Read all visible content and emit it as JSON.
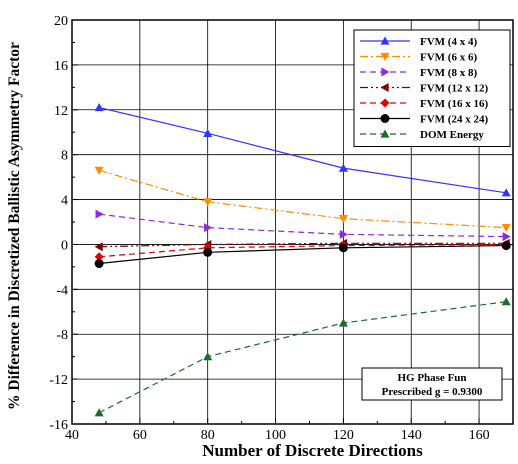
{
  "chart_data": {
    "type": "line",
    "xlabel": "Number of Discrete Directions",
    "ylabel": "% Difference in Discretized Ballistic Asymmetry Factor",
    "xlim": [
      40,
      170
    ],
    "ylim": [
      -16,
      20
    ],
    "xticks": [
      "40",
      "60",
      "80",
      "100",
      "120",
      "140",
      "160"
    ],
    "yticks": [
      "-16",
      "-12",
      "-8",
      "-4",
      "0",
      "4",
      "8",
      "12",
      "16",
      "20"
    ],
    "grid": true,
    "legend_position": "top-right",
    "annotation": [
      "HG Phase Fun",
      "Prescribed g = 0.9300"
    ],
    "series": [
      {
        "name": "FVM (4 x 4)",
        "color": "#3333ff",
        "marker": "triangle-up",
        "dash": "solid",
        "x": [
          48,
          80,
          120,
          168
        ],
        "y": [
          12.2,
          9.9,
          6.8,
          4.6
        ]
      },
      {
        "name": "FVM (6 x 6)",
        "color": "#ff8c00",
        "marker": "triangle-down",
        "dash": "dashdot",
        "x": [
          48,
          80,
          120,
          168
        ],
        "y": [
          6.6,
          3.8,
          2.3,
          1.5
        ]
      },
      {
        "name": "FVM (8 x 8)",
        "color": "#8a2be2",
        "marker": "triangle-right",
        "dash": "dash",
        "x": [
          48,
          80,
          120,
          168
        ],
        "y": [
          2.7,
          1.5,
          0.9,
          0.7
        ]
      },
      {
        "name": "FVM (12 x 12)",
        "color": "#800000",
        "marker": "triangle-left",
        "dash": "dashdotdot",
        "x": [
          48,
          80,
          120,
          168
        ],
        "y": [
          -0.2,
          0.0,
          0.1,
          0.1
        ]
      },
      {
        "name": "FVM (16 x 16)",
        "color": "#e00000",
        "marker": "diamond",
        "dash": "dash",
        "x": [
          48,
          80,
          120,
          168
        ],
        "y": [
          -1.1,
          -0.3,
          -0.1,
          0.0
        ]
      },
      {
        "name": "FVM (24 x 24)",
        "color": "#000000",
        "marker": "circle",
        "dash": "solid",
        "x": [
          48,
          80,
          120,
          168
        ],
        "y": [
          -1.7,
          -0.7,
          -0.3,
          -0.1
        ]
      },
      {
        "name": "DOM Energy",
        "color": "#1e6b2e",
        "marker": "triangle-up",
        "dash": "dash",
        "x": [
          48,
          80,
          120,
          168
        ],
        "y": [
          -15.0,
          -10.0,
          -7.0,
          -5.1
        ]
      }
    ]
  }
}
